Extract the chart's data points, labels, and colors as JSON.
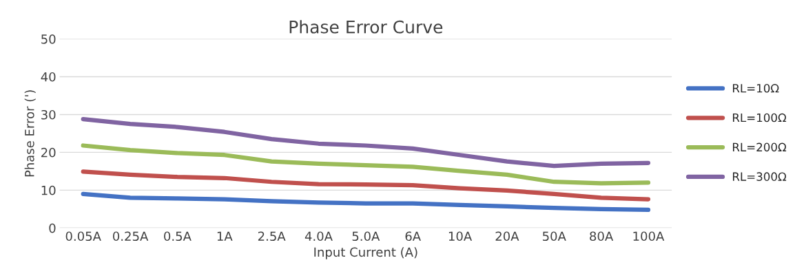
{
  "chart_data": {
    "type": "line",
    "title": "Phase Error Curve",
    "xlabel": "Input Current (A)",
    "ylabel": "Phase Error (')",
    "categories": [
      "0.05A",
      "0.25A",
      "0.5A",
      "1A",
      "2.5A",
      "4.0A",
      "5.0A",
      "6A",
      "10A",
      "20A",
      "50A",
      "80A",
      "100A"
    ],
    "series": [
      {
        "name": "RL=10Ω",
        "color": "#4472c4",
        "values": [
          9.0,
          8.0,
          7.8,
          7.6,
          7.1,
          6.7,
          6.5,
          6.5,
          6.1,
          5.7,
          5.3,
          5.0,
          4.8
        ]
      },
      {
        "name": "RL=100Ω",
        "color": "#c0504d",
        "values": [
          14.9,
          14.1,
          13.5,
          13.2,
          12.2,
          11.6,
          11.5,
          11.3,
          10.5,
          9.9,
          9.0,
          8.0,
          7.6
        ]
      },
      {
        "name": "RL=200Ω",
        "color": "#9bbb59",
        "values": [
          21.8,
          20.6,
          19.8,
          19.3,
          17.6,
          17.0,
          16.6,
          16.2,
          15.1,
          14.1,
          12.2,
          11.8,
          12.0
        ]
      },
      {
        "name": "RL=300Ω",
        "color": "#8064a2",
        "values": [
          28.8,
          27.5,
          26.7,
          25.4,
          23.5,
          22.3,
          21.8,
          21.0,
          19.3,
          17.6,
          16.4,
          17.0,
          17.2
        ]
      }
    ],
    "ylim": [
      0,
      50
    ],
    "yticks": [
      0,
      10,
      20,
      30,
      40,
      50
    ],
    "grid": "y",
    "legend": "right",
    "marker": "none",
    "line_style": "solid"
  }
}
